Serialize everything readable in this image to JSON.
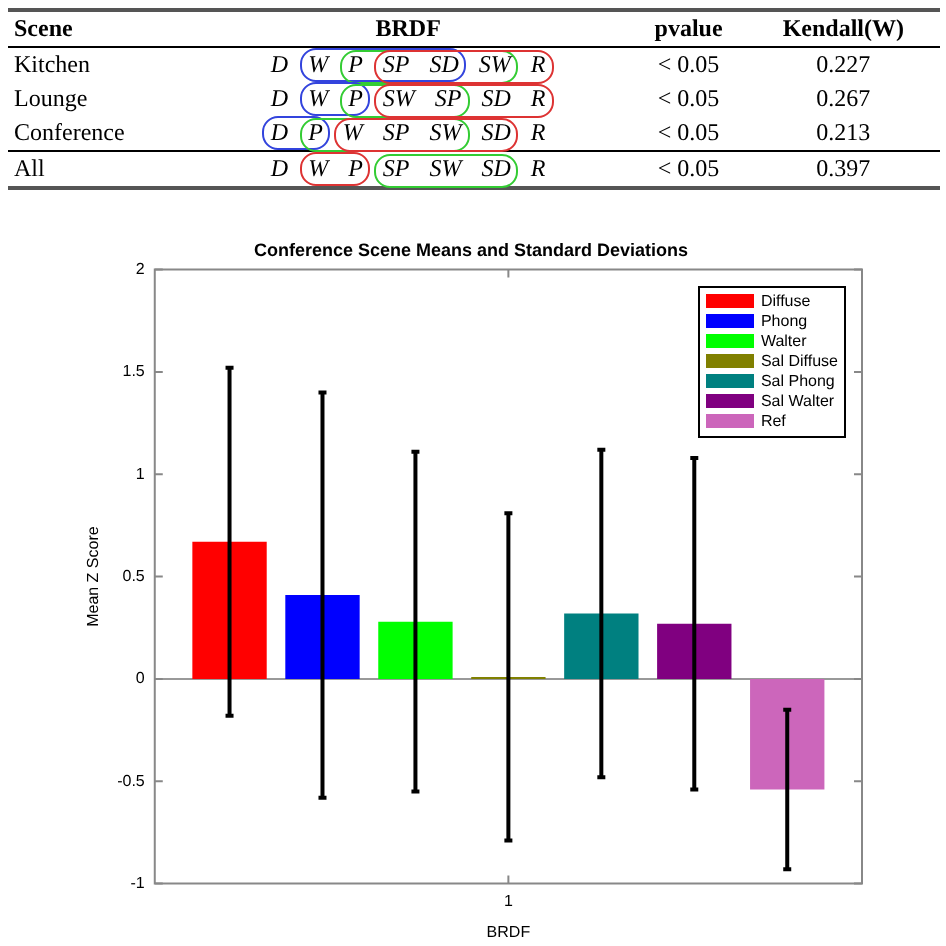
{
  "chart_data": [
    {
      "type": "other",
      "annotations": [
        "Scene",
        "BRDF",
        "pvalue",
        "Kendall(W)",
        "Kitchen",
        "D W P SP SD SW R",
        "< 0.05",
        "0.227",
        "Lounge",
        "D W P SW SP SD R",
        "< 0.05",
        "0.267",
        "Conference",
        "D P W SP SW SD R",
        "< 0.05",
        "0.213",
        "All",
        "D W P SP SW SD R",
        "< 0.05",
        "0.397"
      ]
    },
    {
      "type": "bar",
      "title": "Conference Scene Means and Standard Deviations",
      "xlabel": "BRDF",
      "ylabel": "Mean Z Score",
      "categories": [
        "1"
      ],
      "series": [
        {
          "name": "Diffuse",
          "color": "#ff0000",
          "values": [
            0.67
          ],
          "errors": [
            0.85
          ]
        },
        {
          "name": "Phong",
          "color": "#0000ff",
          "values": [
            0.41
          ],
          "errors": [
            0.99
          ]
        },
        {
          "name": "Walter",
          "color": "#00ff00",
          "values": [
            0.28
          ],
          "errors": [
            0.83
          ]
        },
        {
          "name": "Sal Diffuse",
          "color": "#808000",
          "values": [
            0.01
          ],
          "errors": [
            0.8
          ]
        },
        {
          "name": "Sal Phong",
          "color": "#008080",
          "values": [
            0.32
          ],
          "errors": [
            0.8
          ]
        },
        {
          "name": "Sal Walter",
          "color": "#800080",
          "values": [
            0.27
          ],
          "errors": [
            0.81
          ]
        },
        {
          "name": "Ref",
          "color": "#cc66bb",
          "values": [
            -0.54
          ],
          "errors": [
            0.39
          ]
        }
      ],
      "ylim": [
        -1,
        2
      ],
      "yticks": [
        -1,
        -0.5,
        0,
        0.5,
        1,
        1.5,
        2
      ],
      "ref_lines": [
        {
          "axis": "y",
          "value": 0,
          "color": "#999999"
        }
      ],
      "legend": "top right",
      "grid": false
    }
  ]
}
